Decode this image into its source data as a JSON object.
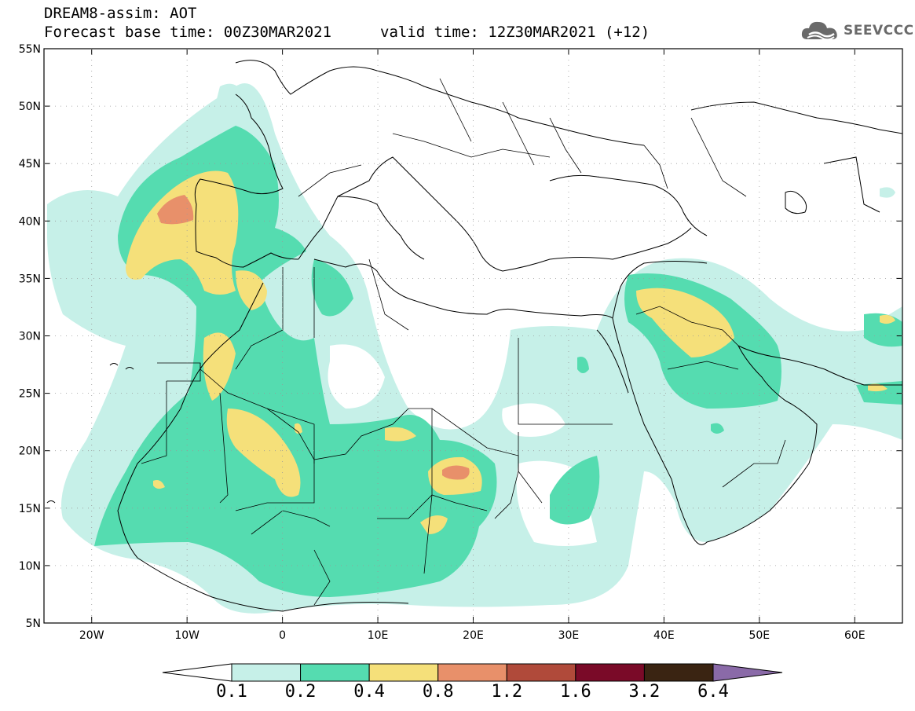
{
  "header": {
    "model_line": "DREAM8-assim: AOT",
    "base_time_line": "Forecast base time: 00Z30MAR2021",
    "valid_time_line": "valid time: 12Z30MAR2021 (+12)"
  },
  "logo": {
    "text": "SEEVCCC",
    "icon": "cloud-icon"
  },
  "map": {
    "lon_range": [
      -25,
      65
    ],
    "lat_range": [
      5,
      55
    ],
    "lon_ticks": [
      {
        "lon": -20,
        "label": "20W"
      },
      {
        "lon": -10,
        "label": "10W"
      },
      {
        "lon": 0,
        "label": "0"
      },
      {
        "lon": 10,
        "label": "10E"
      },
      {
        "lon": 20,
        "label": "20E"
      },
      {
        "lon": 30,
        "label": "30E"
      },
      {
        "lon": 40,
        "label": "40E"
      },
      {
        "lon": 50,
        "label": "50E"
      },
      {
        "lon": 60,
        "label": "60E"
      }
    ],
    "lat_ticks": [
      {
        "lat": 5,
        "label": "5N"
      },
      {
        "lat": 10,
        "label": "10N"
      },
      {
        "lat": 15,
        "label": "15N"
      },
      {
        "lat": 20,
        "label": "20N"
      },
      {
        "lat": 25,
        "label": "25N"
      },
      {
        "lat": 30,
        "label": "30N"
      },
      {
        "lat": 35,
        "label": "35N"
      },
      {
        "lat": 40,
        "label": "40N"
      },
      {
        "lat": 45,
        "label": "45N"
      },
      {
        "lat": 50,
        "label": "50N"
      },
      {
        "lat": 55,
        "label": "55N"
      }
    ]
  },
  "colorbar": {
    "colors": [
      "#c6f0e8",
      "#55dcb0",
      "#f5e07a",
      "#e8906a",
      "#b04a3a",
      "#7a0a28",
      "#3a2412",
      "#8a6aa8"
    ],
    "labels": [
      "0.1",
      "0.2",
      "0.4",
      "0.8",
      "1.2",
      "1.6",
      "3.2",
      "6.4"
    ]
  }
}
